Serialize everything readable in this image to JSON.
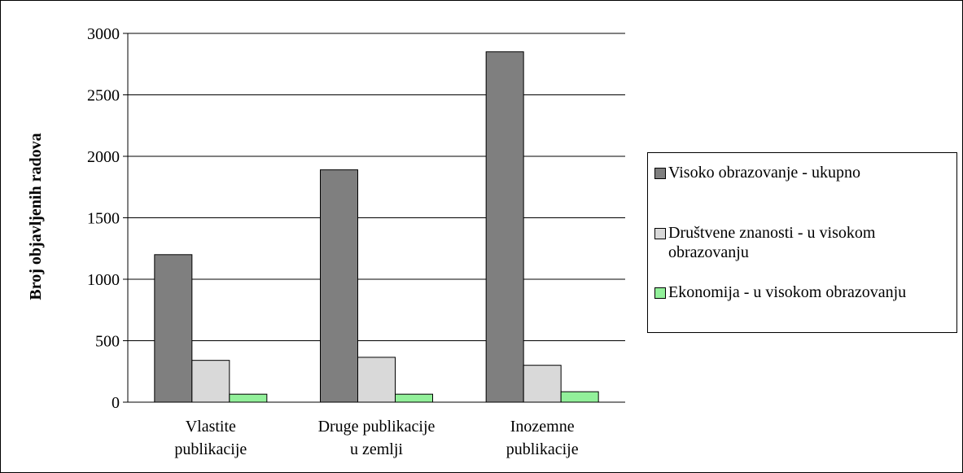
{
  "chart_data": {
    "type": "bar",
    "title": "",
    "xlabel": "",
    "ylabel": "Broj objavljenih radova",
    "ylim": [
      0,
      3000
    ],
    "yticks": [
      0,
      500,
      1000,
      1500,
      2000,
      2500,
      3000
    ],
    "grid": true,
    "legend_position": "right",
    "categories": [
      [
        "Vlastite",
        "publikacije"
      ],
      [
        "Druge publikacije",
        "u zemlji"
      ],
      [
        "Inozemne",
        "publikacije"
      ]
    ],
    "series": [
      {
        "name": "Visoko obrazovanje - ukupno",
        "color": "#7f7f7f",
        "values": [
          1200,
          1890,
          2850
        ]
      },
      {
        "name": "Društvene znanosti - u visokom obrazovanju",
        "color": "#d9d9d9",
        "values": [
          340,
          365,
          300
        ]
      },
      {
        "name": "Ekonomija - u visokom obrazovanju",
        "color": "#92f09a",
        "values": [
          65,
          65,
          85
        ]
      }
    ]
  }
}
